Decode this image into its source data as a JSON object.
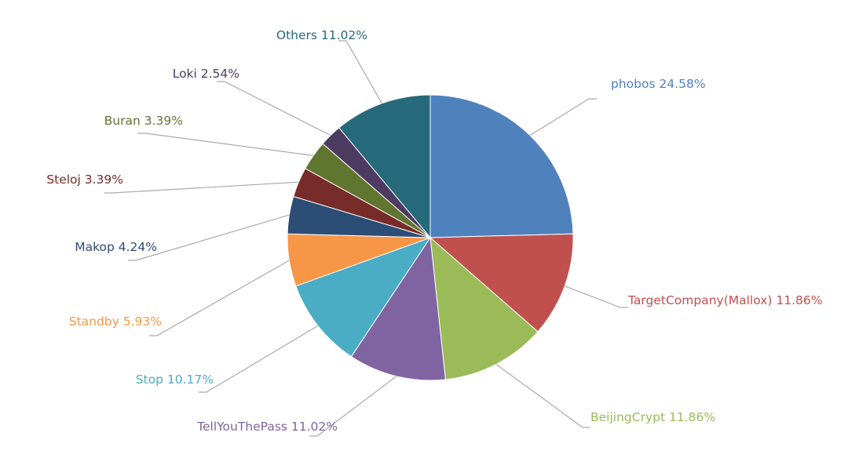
{
  "chart_data": {
    "type": "pie",
    "title": "",
    "start_angle_deg": 0,
    "direction": "clockwise",
    "slices": [
      {
        "name": "phobos",
        "value": 24.58,
        "label": "24.58%",
        "color": "#4f81bd"
      },
      {
        "name": "TargetCompany(Mallox)",
        "value": 11.86,
        "label": "11.86%",
        "color": "#c0504d"
      },
      {
        "name": "BeijingCrypt",
        "value": 11.86,
        "label": "11.86%",
        "color": "#9bbb59"
      },
      {
        "name": "TellYouThePass",
        "value": 11.02,
        "label": "11.02%",
        "color": "#8064a2"
      },
      {
        "name": "Stop",
        "value": 10.17,
        "label": "10.17%",
        "color": "#4bacc6"
      },
      {
        "name": "Standby",
        "value": 5.93,
        "label": "5.93%",
        "color": "#f79646"
      },
      {
        "name": "Makop",
        "value": 4.24,
        "label": "4.24%",
        "color": "#2c4d75"
      },
      {
        "name": "Steloj",
        "value": 3.39,
        "label": "3.39%",
        "color": "#772c2a"
      },
      {
        "name": "Buran",
        "value": 3.39,
        "label": "3.39%",
        "color": "#5f7530"
      },
      {
        "name": "Loki",
        "value": 2.54,
        "label": "2.54%",
        "color": "#4d3b62"
      },
      {
        "name": "Others",
        "value": 11.02,
        "label": "11.02%",
        "color": "#276a7c"
      }
    ]
  }
}
